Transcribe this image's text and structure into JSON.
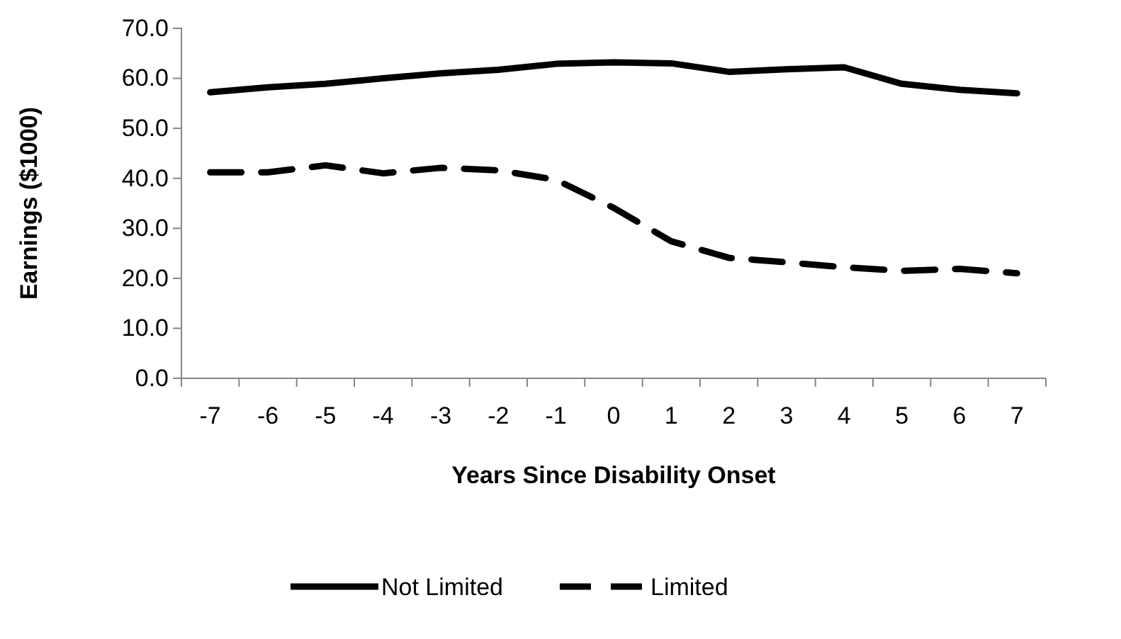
{
  "chart_data": {
    "type": "line",
    "xlabel": "Years Since Disability Onset",
    "ylabel": "Earnings ($1000)",
    "categories": [
      "-7",
      "-6",
      "-5",
      "-4",
      "-3",
      "-2",
      "-1",
      "0",
      "1",
      "2",
      "3",
      "4",
      "5",
      "6",
      "7"
    ],
    "series": [
      {
        "name": "Not Limited",
        "color": "#000000",
        "line_style": "solid",
        "values": [
          57.2,
          58.2,
          58.9,
          60.0,
          61.0,
          61.7,
          62.9,
          63.2,
          63.0,
          61.3,
          61.8,
          62.2,
          58.9,
          57.7,
          57.0
        ]
      },
      {
        "name": "Limited",
        "color": "#000000",
        "line_style": "dashed",
        "values": [
          41.2,
          41.2,
          42.6,
          41.0,
          42.1,
          41.6,
          39.7,
          34.1,
          27.4,
          24.1,
          23.2,
          22.2,
          21.5,
          21.9,
          21.0
        ]
      }
    ],
    "ylim": [
      0,
      70
    ],
    "yticks": [
      {
        "value": 0,
        "label": "0.0"
      },
      {
        "value": 10,
        "label": "10.0"
      },
      {
        "value": 20,
        "label": "20.0"
      },
      {
        "value": 30,
        "label": "30.0"
      },
      {
        "value": 40,
        "label": "40.0"
      },
      {
        "value": 50,
        "label": "50.0"
      },
      {
        "value": 60,
        "label": "60.0"
      },
      {
        "value": 70,
        "label": "70.0"
      }
    ],
    "grid": false,
    "legend": "bottom",
    "marker": "none"
  }
}
